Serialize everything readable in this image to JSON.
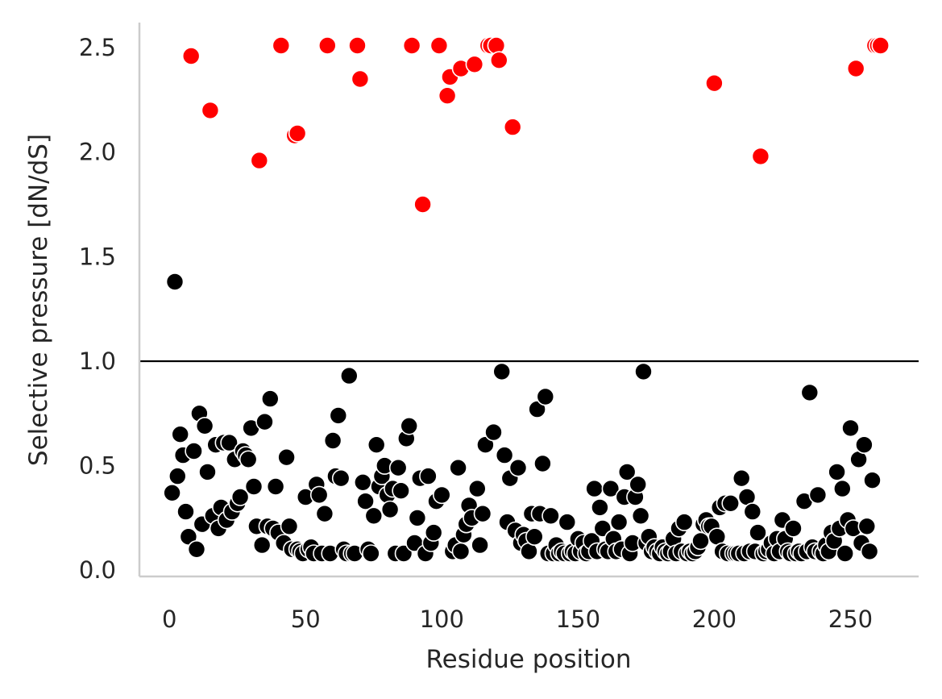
{
  "chart_data": {
    "type": "scatter",
    "xlabel": "Residue position",
    "ylabel": "Selective pressure [dN/dS]",
    "xlim": [
      -11,
      275
    ],
    "ylim": [
      -0.03,
      2.62
    ],
    "xticks": [
      0,
      50,
      100,
      150,
      200,
      250
    ],
    "yticks": [
      0.0,
      0.5,
      1.0,
      1.5,
      2.0,
      2.5
    ],
    "ytick_labels": [
      "0.0",
      "0.5",
      "1.0",
      "1.5",
      "2.0",
      "2.5"
    ],
    "reference_line": {
      "y": 1.0,
      "color": "#000000"
    },
    "grid": false,
    "colors": {
      "below_threshold": "#000000",
      "above_threshold": "#ff0000"
    },
    "series": [
      {
        "color": "#ff0000",
        "points": [
          [
            8,
            2.46
          ],
          [
            15,
            2.2
          ],
          [
            33,
            1.96
          ],
          [
            41,
            2.51
          ],
          [
            46,
            2.08
          ],
          [
            47,
            2.09
          ],
          [
            58,
            2.51
          ],
          [
            69,
            2.51
          ],
          [
            70,
            2.35
          ],
          [
            89,
            2.51
          ],
          [
            93,
            1.75
          ],
          [
            99,
            2.51
          ],
          [
            102,
            2.27
          ],
          [
            103,
            2.36
          ],
          [
            107,
            2.4
          ],
          [
            112,
            2.42
          ],
          [
            117,
            2.51
          ],
          [
            118,
            2.51
          ],
          [
            120,
            2.51
          ],
          [
            121,
            2.44
          ],
          [
            126,
            2.12
          ],
          [
            200,
            2.33
          ],
          [
            217,
            1.98
          ],
          [
            252,
            2.4
          ],
          [
            259,
            2.51
          ],
          [
            260,
            2.51
          ],
          [
            261,
            2.51
          ]
        ]
      },
      {
        "color": "#000000",
        "points": [
          [
            1,
            0.37
          ],
          [
            2,
            1.38
          ],
          [
            3,
            0.45
          ],
          [
            4,
            0.65
          ],
          [
            5,
            0.55
          ],
          [
            6,
            0.28
          ],
          [
            7,
            0.16
          ],
          [
            9,
            0.57
          ],
          [
            10,
            0.1
          ],
          [
            11,
            0.75
          ],
          [
            12,
            0.22
          ],
          [
            13,
            0.69
          ],
          [
            14,
            0.47
          ],
          [
            16,
            0.26
          ],
          [
            17,
            0.6
          ],
          [
            18,
            0.2
          ],
          [
            19,
            0.3
          ],
          [
            20,
            0.61
          ],
          [
            21,
            0.24
          ],
          [
            22,
            0.61
          ],
          [
            23,
            0.28
          ],
          [
            24,
            0.53
          ],
          [
            25,
            0.32
          ],
          [
            26,
            0.35
          ],
          [
            27,
            0.57
          ],
          [
            28,
            0.55
          ],
          [
            29,
            0.53
          ],
          [
            30,
            0.68
          ],
          [
            31,
            0.4
          ],
          [
            32,
            0.21
          ],
          [
            34,
            0.12
          ],
          [
            35,
            0.71
          ],
          [
            36,
            0.21
          ],
          [
            37,
            0.82
          ],
          [
            38,
            0.2
          ],
          [
            39,
            0.4
          ],
          [
            40,
            0.18
          ],
          [
            42,
            0.13
          ],
          [
            43,
            0.54
          ],
          [
            44,
            0.21
          ],
          [
            45,
            0.1
          ],
          [
            47,
            0.1
          ],
          [
            48,
            0.09
          ],
          [
            49,
            0.08
          ],
          [
            50,
            0.35
          ],
          [
            51,
            0.1
          ],
          [
            52,
            0.11
          ],
          [
            53,
            0.08
          ],
          [
            54,
            0.41
          ],
          [
            55,
            0.36
          ],
          [
            56,
            0.08
          ],
          [
            57,
            0.27
          ],
          [
            59,
            0.08
          ],
          [
            60,
            0.62
          ],
          [
            61,
            0.45
          ],
          [
            62,
            0.74
          ],
          [
            63,
            0.44
          ],
          [
            64,
            0.1
          ],
          [
            65,
            0.08
          ],
          [
            66,
            0.93
          ],
          [
            67,
            0.08
          ],
          [
            68,
            0.08
          ],
          [
            71,
            0.42
          ],
          [
            72,
            0.33
          ],
          [
            73,
            0.1
          ],
          [
            74,
            0.08
          ],
          [
            75,
            0.26
          ],
          [
            76,
            0.6
          ],
          [
            77,
            0.4
          ],
          [
            78,
            0.45
          ],
          [
            79,
            0.5
          ],
          [
            80,
            0.36
          ],
          [
            81,
            0.29
          ],
          [
            82,
            0.39
          ],
          [
            83,
            0.08
          ],
          [
            84,
            0.49
          ],
          [
            85,
            0.38
          ],
          [
            86,
            0.08
          ],
          [
            87,
            0.63
          ],
          [
            88,
            0.69
          ],
          [
            90,
            0.13
          ],
          [
            91,
            0.25
          ],
          [
            92,
            0.44
          ],
          [
            94,
            0.08
          ],
          [
            95,
            0.45
          ],
          [
            96,
            0.13
          ],
          [
            97,
            0.18
          ],
          [
            98,
            0.33
          ],
          [
            100,
            0.36
          ],
          [
            104,
            0.09
          ],
          [
            105,
            0.12
          ],
          [
            106,
            0.49
          ],
          [
            107,
            0.09
          ],
          [
            108,
            0.17
          ],
          [
            109,
            0.22
          ],
          [
            110,
            0.31
          ],
          [
            111,
            0.25
          ],
          [
            113,
            0.39
          ],
          [
            114,
            0.12
          ],
          [
            115,
            0.27
          ],
          [
            116,
            0.6
          ],
          [
            119,
            0.66
          ],
          [
            122,
            0.95
          ],
          [
            123,
            0.55
          ],
          [
            124,
            0.23
          ],
          [
            125,
            0.44
          ],
          [
            127,
            0.19
          ],
          [
            128,
            0.49
          ],
          [
            129,
            0.13
          ],
          [
            130,
            0.17
          ],
          [
            131,
            0.14
          ],
          [
            132,
            0.09
          ],
          [
            133,
            0.27
          ],
          [
            134,
            0.16
          ],
          [
            135,
            0.77
          ],
          [
            136,
            0.27
          ],
          [
            137,
            0.51
          ],
          [
            138,
            0.83
          ],
          [
            139,
            0.08
          ],
          [
            140,
            0.26
          ],
          [
            141,
            0.08
          ],
          [
            142,
            0.12
          ],
          [
            143,
            0.08
          ],
          [
            144,
            0.09
          ],
          [
            145,
            0.08
          ],
          [
            146,
            0.23
          ],
          [
            147,
            0.08
          ],
          [
            148,
            0.09
          ],
          [
            149,
            0.08
          ],
          [
            150,
            0.15
          ],
          [
            151,
            0.09
          ],
          [
            152,
            0.13
          ],
          [
            153,
            0.08
          ],
          [
            154,
            0.09
          ],
          [
            155,
            0.14
          ],
          [
            156,
            0.39
          ],
          [
            157,
            0.09
          ],
          [
            158,
            0.3
          ],
          [
            159,
            0.2
          ],
          [
            160,
            0.1
          ],
          [
            161,
            0.09
          ],
          [
            162,
            0.39
          ],
          [
            163,
            0.15
          ],
          [
            164,
            0.09
          ],
          [
            165,
            0.23
          ],
          [
            166,
            0.1
          ],
          [
            167,
            0.35
          ],
          [
            168,
            0.47
          ],
          [
            169,
            0.08
          ],
          [
            170,
            0.13
          ],
          [
            171,
            0.35
          ],
          [
            172,
            0.41
          ],
          [
            173,
            0.26
          ],
          [
            174,
            0.95
          ],
          [
            175,
            0.13
          ],
          [
            176,
            0.16
          ],
          [
            177,
            0.09
          ],
          [
            178,
            0.11
          ],
          [
            179,
            0.09
          ],
          [
            180,
            0.08
          ],
          [
            181,
            0.11
          ],
          [
            182,
            0.09
          ],
          [
            183,
            0.08
          ],
          [
            184,
            0.09
          ],
          [
            185,
            0.15
          ],
          [
            186,
            0.08
          ],
          [
            187,
            0.2
          ],
          [
            188,
            0.09
          ],
          [
            189,
            0.23
          ],
          [
            190,
            0.08
          ],
          [
            191,
            0.09
          ],
          [
            192,
            0.08
          ],
          [
            193,
            0.09
          ],
          [
            194,
            0.11
          ],
          [
            195,
            0.14
          ],
          [
            196,
            0.22
          ],
          [
            197,
            0.24
          ],
          [
            198,
            0.21
          ],
          [
            199,
            0.21
          ],
          [
            201,
            0.16
          ],
          [
            202,
            0.3
          ],
          [
            203,
            0.09
          ],
          [
            204,
            0.32
          ],
          [
            205,
            0.08
          ],
          [
            206,
            0.32
          ],
          [
            207,
            0.08
          ],
          [
            208,
            0.08
          ],
          [
            209,
            0.08
          ],
          [
            210,
            0.44
          ],
          [
            211,
            0.08
          ],
          [
            212,
            0.35
          ],
          [
            213,
            0.09
          ],
          [
            214,
            0.28
          ],
          [
            215,
            0.09
          ],
          [
            216,
            0.18
          ],
          [
            218,
            0.08
          ],
          [
            219,
            0.09
          ],
          [
            220,
            0.1
          ],
          [
            221,
            0.13
          ],
          [
            222,
            0.08
          ],
          [
            223,
            0.15
          ],
          [
            224,
            0.09
          ],
          [
            225,
            0.24
          ],
          [
            226,
            0.15
          ],
          [
            227,
            0.09
          ],
          [
            228,
            0.08
          ],
          [
            229,
            0.2
          ],
          [
            230,
            0.08
          ],
          [
            231,
            0.09
          ],
          [
            232,
            0.08
          ],
          [
            233,
            0.33
          ],
          [
            234,
            0.09
          ],
          [
            235,
            0.85
          ],
          [
            236,
            0.11
          ],
          [
            237,
            0.09
          ],
          [
            238,
            0.36
          ],
          [
            239,
            0.09
          ],
          [
            240,
            0.08
          ],
          [
            241,
            0.12
          ],
          [
            242,
            0.09
          ],
          [
            243,
            0.18
          ],
          [
            244,
            0.14
          ],
          [
            245,
            0.47
          ],
          [
            246,
            0.2
          ],
          [
            247,
            0.39
          ],
          [
            248,
            0.08
          ],
          [
            249,
            0.24
          ],
          [
            250,
            0.68
          ],
          [
            251,
            0.2
          ],
          [
            253,
            0.53
          ],
          [
            254,
            0.13
          ],
          [
            255,
            0.6
          ],
          [
            256,
            0.21
          ],
          [
            257,
            0.09
          ],
          [
            258,
            0.43
          ]
        ]
      }
    ]
  }
}
